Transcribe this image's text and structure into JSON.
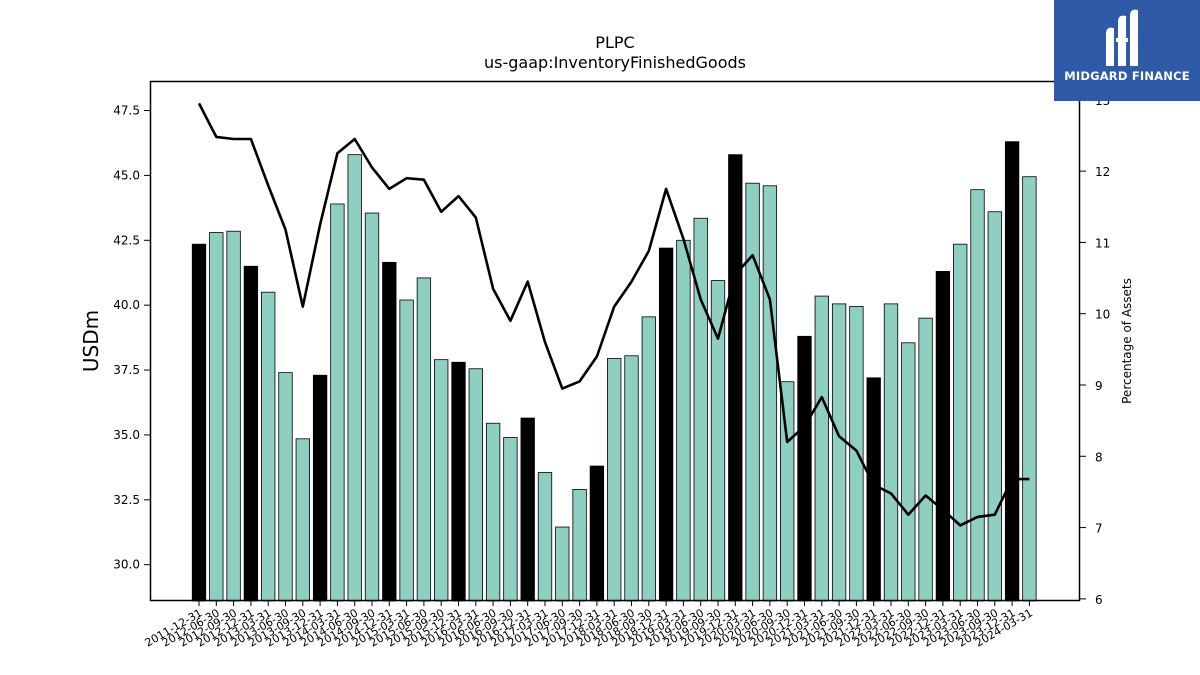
{
  "chart_data": {
    "type": "bar",
    "title": "PLPC",
    "subtitle": "us-gaap:InventoryFinishedGoods",
    "ylabel": "USDm",
    "y2label": "Percentage of Assets",
    "ylim": [
      28.6,
      48.6
    ],
    "y2lim": [
      5.97,
      13.25
    ],
    "yticks": [
      "30.0",
      "32.5",
      "35.0",
      "37.5",
      "40.0",
      "42.5",
      "45.0",
      "47.5"
    ],
    "y2ticks": [
      "6",
      "7",
      "8",
      "9",
      "10",
      "11",
      "12",
      "13"
    ],
    "categories": [
      "2011-12-31",
      "2012-06-30",
      "2012-09-30",
      "2012-12-31",
      "2013-03-31",
      "2013-06-30",
      "2013-09-30",
      "2013-12-31",
      "2014-03-31",
      "2014-06-30",
      "2014-09-30",
      "2014-12-31",
      "2015-03-31",
      "2015-06-30",
      "2015-09-30",
      "2015-12-31",
      "2016-03-31",
      "2016-06-30",
      "2016-09-30",
      "2016-12-31",
      "2017-03-31",
      "2017-06-30",
      "2017-09-30",
      "2017-12-31",
      "2018-03-31",
      "2018-06-30",
      "2018-09-30",
      "2018-12-31",
      "2019-03-31",
      "2019-06-30",
      "2019-09-30",
      "2019-12-31",
      "2020-03-31",
      "2020-06-30",
      "2020-09-30",
      "2020-12-31",
      "2021-03-31",
      "2021-06-30",
      "2021-09-30",
      "2021-12-31",
      "2022-03-31",
      "2022-06-30",
      "2022-09-30",
      "2022-12-31",
      "2023-03-31",
      "2023-06-30",
      "2023-09-30",
      "2023-12-31",
      "2024-03-31"
    ],
    "series": [
      {
        "type": "bar",
        "values": [
          42.35,
          42.8,
          42.85,
          41.5,
          40.5,
          37.4,
          34.85,
          37.3,
          43.9,
          45.8,
          43.55,
          41.65,
          40.2,
          41.05,
          37.9,
          37.8,
          37.55,
          35.45,
          34.9,
          35.65,
          33.55,
          31.45,
          32.9,
          33.8,
          37.95,
          38.05,
          39.55,
          42.2,
          42.5,
          43.35,
          40.95,
          45.8,
          44.7,
          44.6,
          37.05,
          38.8,
          40.35,
          40.05,
          39.95,
          37.2,
          40.05,
          38.55,
          39.5,
          41.3,
          42.35,
          44.45,
          43.6,
          46.3,
          44.95
        ],
        "highlight_color": "#000000",
        "color": "#8ecfc2",
        "highlight_categories": [
          "2011-12-31",
          "2012-12-31",
          "2013-12-31",
          "2014-12-31",
          "2015-12-31",
          "2016-12-31",
          "2017-12-31",
          "2018-12-31",
          "2019-12-31",
          "2020-12-31",
          "2021-12-31",
          "2022-12-31",
          "2023-12-31"
        ]
      },
      {
        "type": "line",
        "axis": "right",
        "color": "#000000",
        "values": [
          12.95,
          12.48,
          12.45,
          12.45,
          11.8,
          11.18,
          10.1,
          11.25,
          12.25,
          12.45,
          12.05,
          11.75,
          11.9,
          11.88,
          11.43,
          11.65,
          11.35,
          10.35,
          9.9,
          10.45,
          9.6,
          8.95,
          9.05,
          9.4,
          10.1,
          10.45,
          10.88,
          11.75,
          11.05,
          10.2,
          9.65,
          10.55,
          10.82,
          10.2,
          8.2,
          8.42,
          8.83,
          8.28,
          8.08,
          7.6,
          7.48,
          7.18,
          7.45,
          7.25,
          7.03,
          7.15,
          7.18,
          7.68,
          7.68
        ]
      }
    ]
  },
  "logo": {
    "text": "MIDGARD FINANCE"
  }
}
